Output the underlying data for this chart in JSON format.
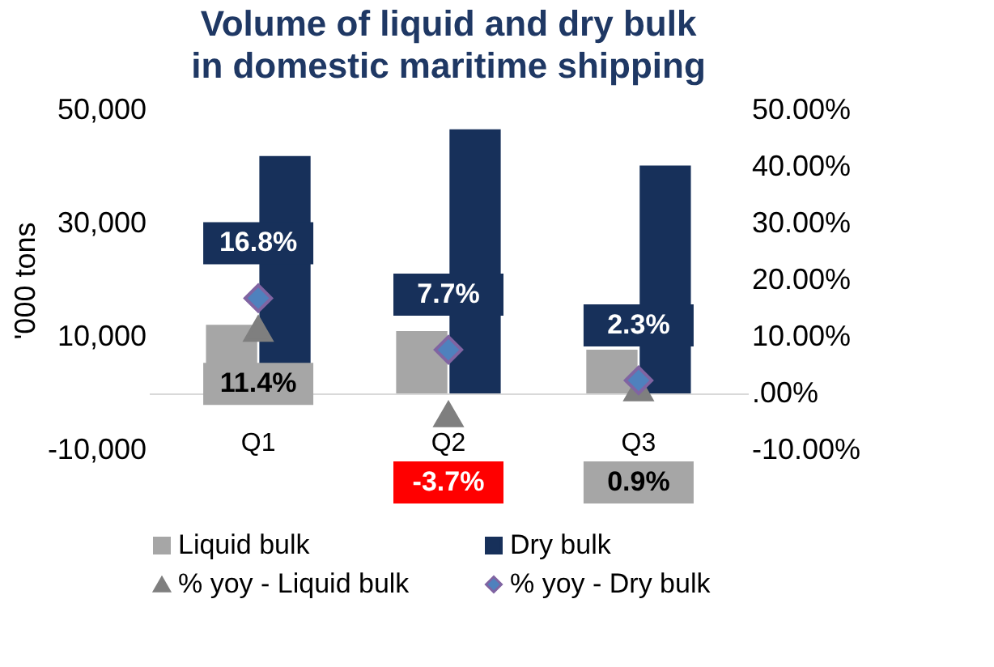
{
  "chart_data": {
    "type": "bar",
    "title": "Volume of liquid and dry bulk in domestic maritime shipping",
    "ylabel": "'000 tons",
    "categories": [
      "Q1",
      "Q2",
      "Q3"
    ],
    "series": [
      {
        "name": "Liquid bulk",
        "color": "#a6a6a6",
        "values": [
          12100,
          11000,
          7700
        ]
      },
      {
        "name": "Dry bulk",
        "color": "#17305a",
        "values": [
          41900,
          46600,
          40200
        ]
      },
      {
        "name": "% yoy - Liquid bulk",
        "color": "#7f7f7f",
        "type": "scatter",
        "axis": "y2",
        "marker": "triangle",
        "values": [
          11.4,
          -3.7,
          0.9
        ],
        "value_labels": [
          "11.4%",
          "-3.7%",
          "0.9%"
        ]
      },
      {
        "name": "% yoy - Dry bulk",
        "color": "#4f81bd",
        "type": "scatter",
        "axis": "y2",
        "marker": "diamond",
        "values": [
          16.8,
          7.7,
          2.3
        ],
        "value_labels": [
          "16.8%",
          "7.7%",
          "2.3%"
        ]
      }
    ],
    "ylim": [
      -10000,
      50000
    ],
    "yticks": [
      {
        "value": -10000,
        "label": "-10,000"
      },
      {
        "value": 10000,
        "label": "10,000"
      },
      {
        "value": 30000,
        "label": "30,000"
      },
      {
        "value": 50000,
        "label": "50,000"
      }
    ],
    "y2lim": [
      -10,
      50
    ],
    "y2ticks": [
      {
        "value": -10,
        "label": "-10.00%"
      },
      {
        "value": 0,
        "label": ".00%"
      },
      {
        "value": 10,
        "label": "10.00%"
      },
      {
        "value": 20,
        "label": "20.00%"
      },
      {
        "value": 30,
        "label": "30.00%"
      },
      {
        "value": 40,
        "label": "40.00%"
      },
      {
        "value": 50,
        "label": "50.00%"
      }
    ],
    "grid": false,
    "legend": "bottom"
  }
}
